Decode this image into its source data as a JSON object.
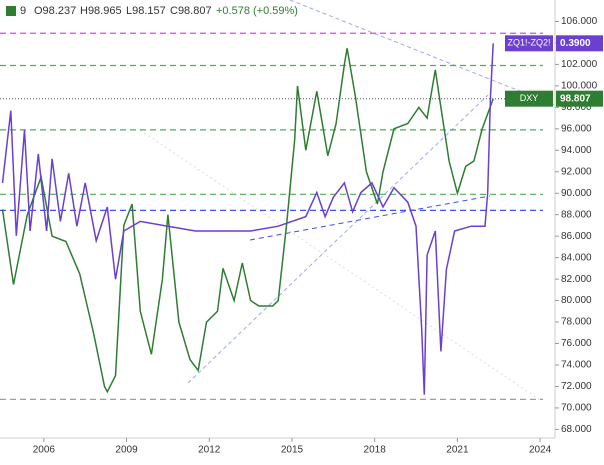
{
  "chart_data": {
    "type": "line",
    "header": [
      "9",
      "O98.237",
      "H98.965",
      "L98.157",
      "C98.807",
      "+0.578 (+0.59%)"
    ],
    "xlim": [
      2004.41,
      2024.54
    ],
    "xticks": [
      2006,
      2009,
      2012,
      2015,
      2018,
      2021,
      2024
    ],
    "ylim": [
      67.2,
      108
    ],
    "yticks": [
      {
        "value": 68,
        "label": "68.000"
      },
      {
        "value": 70,
        "label": "70.000"
      },
      {
        "value": 72,
        "label": "72.000"
      },
      {
        "value": 74,
        "label": "74.000"
      },
      {
        "value": 76,
        "label": "76.000"
      },
      {
        "value": 78,
        "label": "78.000"
      },
      {
        "value": 80,
        "label": "80.000"
      },
      {
        "value": 82,
        "label": "82.000"
      },
      {
        "value": 84,
        "label": "84.000"
      },
      {
        "value": 86,
        "label": "86.000"
      },
      {
        "value": 88,
        "label": "88.000"
      },
      {
        "value": 90,
        "label": "90.000"
      },
      {
        "value": 92,
        "label": "92.000"
      },
      {
        "value": 94,
        "label": "94.000"
      },
      {
        "value": 96,
        "label": "96.000"
      },
      {
        "value": 98,
        "label": "98.000"
      },
      {
        "value": 100,
        "label": "100.000"
      },
      {
        "value": 102,
        "label": "102.000"
      },
      {
        "value": 104,
        "label": "104.000"
      },
      {
        "value": 106,
        "label": "106.000"
      }
    ],
    "y2lim": [
      -0.43,
      0.48
    ],
    "levels": [
      {
        "value": 104.9,
        "color": "#e040fb"
      },
      {
        "value": 101.9,
        "color": "#4caf50"
      },
      {
        "value": 95.9,
        "color": "#4caf50"
      },
      {
        "value": 89.9,
        "color": "#4caf50"
      },
      {
        "value": 88.4,
        "color": "#3f51e0"
      },
      {
        "value": 70.8,
        "color": "#9e9e9e"
      }
    ],
    "series": [
      {
        "name": "DXY",
        "color": "#2e7d32",
        "x": [
          2004.5,
          2004.9,
          2005.4,
          2005.9,
          2006.3,
          2006.8,
          2007.3,
          2007.8,
          2008.2,
          2008.3,
          2008.6,
          2008.9,
          2009.2,
          2009.5,
          2009.9,
          2010.3,
          2010.5,
          2010.9,
          2011.3,
          2011.6,
          2011.9,
          2012.3,
          2012.5,
          2012.9,
          2013.2,
          2013.5,
          2013.8,
          2014.3,
          2014.5,
          2014.8,
          2015.1,
          2015.2,
          2015.5,
          2015.9,
          2016.3,
          2016.6,
          2016.9,
          2017.0,
          2017.3,
          2017.7,
          2018.1,
          2018.3,
          2018.7,
          2019.2,
          2019.6,
          2019.9,
          2020.2,
          2020.4,
          2020.7,
          2021.0,
          2021.3,
          2021.6,
          2021.9,
          2022.3
        ],
        "values": [
          88.5,
          81.5,
          88,
          91.5,
          86,
          85.5,
          82.5,
          77,
          72,
          71.5,
          73,
          87,
          89,
          79,
          75,
          82,
          88,
          78,
          74.5,
          73.5,
          78,
          79,
          83,
          80,
          83.5,
          80,
          79.5,
          79.5,
          80,
          87,
          95,
          100,
          94,
          99.5,
          93.5,
          96.5,
          102,
          103.5,
          99,
          92,
          89,
          92,
          96,
          96.5,
          98,
          97,
          101.5,
          98,
          93,
          90,
          92.5,
          93,
          96,
          98.807
        ]
      },
      {
        "name": "ZQ1!-ZQ2!",
        "color": "#6a3fd1",
        "axis": "y2",
        "x": [
          2004.5,
          2004.8,
          2005.0,
          2005.3,
          2005.5,
          2005.8,
          2006.1,
          2006.3,
          2006.6,
          2006.9,
          2007.2,
          2007.5,
          2007.9,
          2008.3,
          2008.6,
          2008.9,
          2009.5,
          2010.5,
          2011.5,
          2012.5,
          2013.5,
          2014.5,
          2015.5,
          2015.9,
          2016.2,
          2016.5,
          2016.9,
          2017.2,
          2017.5,
          2017.9,
          2018.3,
          2018.7,
          2019.2,
          2019.5,
          2019.7,
          2019.8,
          2019.9,
          2020.2,
          2020.4,
          2020.6,
          2020.9,
          2021.5,
          2022.0,
          2022.1,
          2022.2,
          2022.3
        ],
        "values": [
          0.1,
          0.25,
          -0.01,
          0.21,
          0.0,
          0.16,
          0.0,
          0.15,
          0.02,
          0.12,
          0.01,
          0.1,
          -0.02,
          0.05,
          -0.1,
          0.0,
          0.02,
          0.01,
          0.0,
          0.0,
          0.0,
          0.01,
          0.03,
          0.08,
          0.03,
          0.07,
          0.1,
          0.04,
          0.08,
          0.1,
          0.05,
          0.09,
          0.06,
          0.01,
          -0.2,
          -0.34,
          -0.05,
          0.0,
          -0.25,
          -0.08,
          0.0,
          0.01,
          0.01,
          0.08,
          0.28,
          0.39
        ],
        "value_labels": [
          null,
          null,
          null,
          null,
          null,
          null,
          null,
          null,
          null,
          null,
          null,
          null,
          null,
          null,
          null,
          null,
          null,
          null,
          null,
          null,
          null,
          null,
          null,
          null,
          null,
          null,
          null,
          null,
          null,
          null,
          null,
          null,
          null,
          null,
          null,
          null,
          null,
          null,
          null,
          null,
          null,
          null,
          null,
          null,
          null,
          "0.3900"
        ]
      }
    ]
  }
}
